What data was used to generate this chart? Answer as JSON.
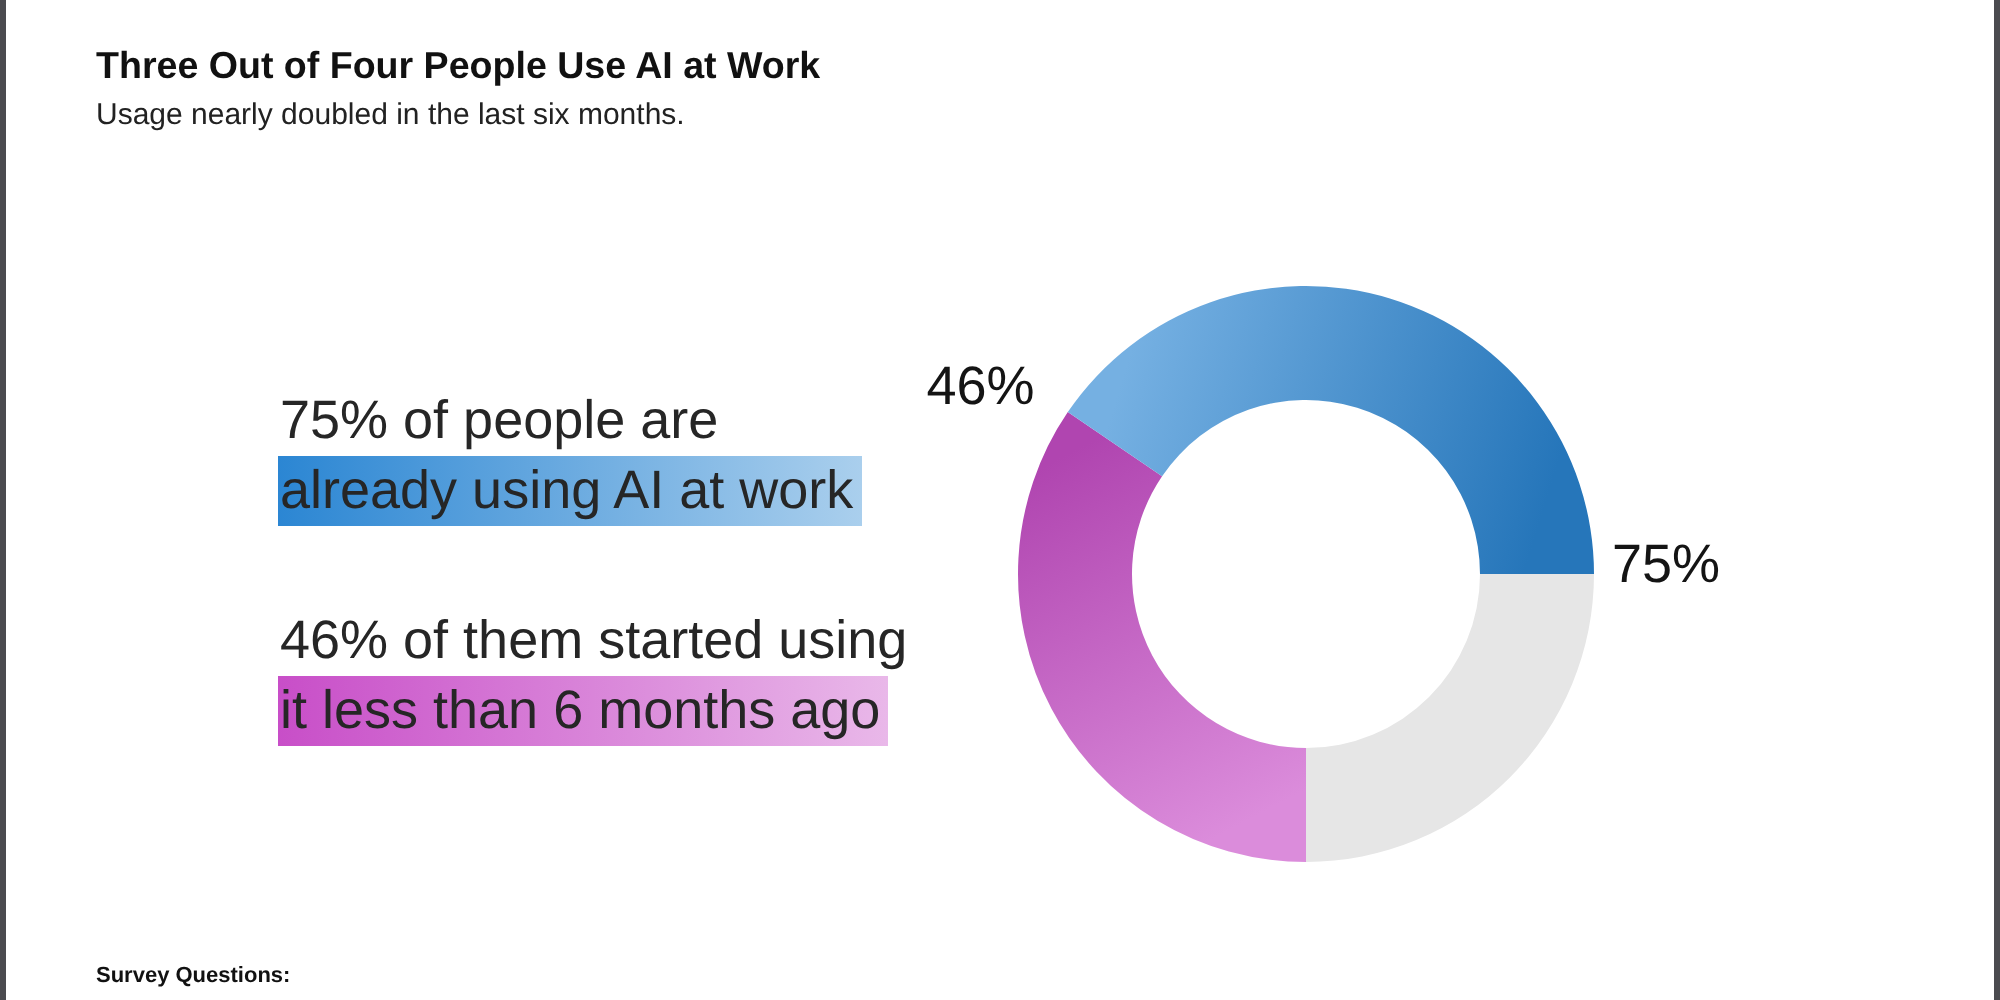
{
  "chart_data": {
    "type": "donut",
    "title": "Three Out of Four People Use AI at Work",
    "subtitle": "Usage nearly doubled in the last six months.",
    "categories": [
      null,
      null,
      null
    ],
    "values": [
      34.5,
      40.5,
      25
    ],
    "colors": [
      "#c84ec8",
      "#2b86d3",
      "#e6e6e6"
    ],
    "annotations": [
      "46%",
      "75%",
      "75% of people are\nalready using AI at work",
      "46% of them started using\nit less than 6 months ago",
      "Survey Questions:"
    ]
  }
}
